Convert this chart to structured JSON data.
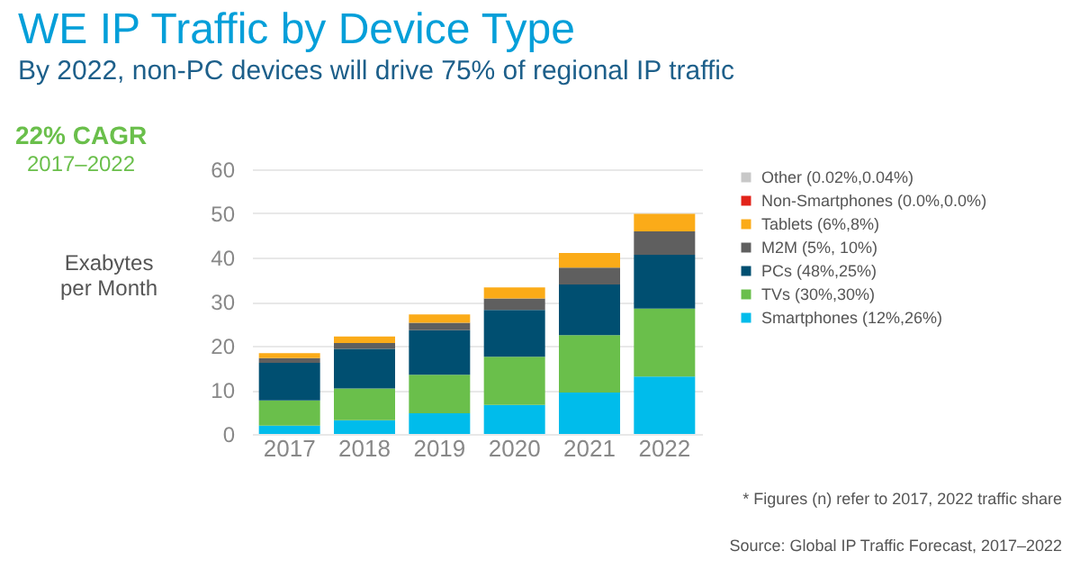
{
  "chart_data": {
    "type": "bar",
    "title": "WE IP Traffic by Device Type",
    "subtitle": "By 2022, non-PC devices will drive 75% of regional IP traffic",
    "ylabel": "Exabytes per Month",
    "categories": [
      "2017",
      "2018",
      "2019",
      "2020",
      "2021",
      "2022"
    ],
    "stacked": true,
    "ylim": [
      0,
      60
    ],
    "yticks": [
      0,
      10,
      20,
      30,
      40,
      50,
      60
    ],
    "grid": "y",
    "legend": "right",
    "series": [
      {
        "name": "Smartphones (12%,26%)",
        "color": "#00bceb",
        "values": [
          1.9,
          3.1,
          4.7,
          6.6,
          9.4,
          13.0
        ]
      },
      {
        "name": "TVs (30%,30%)",
        "color": "#6abf4b",
        "values": [
          5.7,
          7.2,
          8.7,
          10.9,
          13.0,
          15.4
        ]
      },
      {
        "name": "PCs (48%,25%)",
        "color": "#004f71",
        "values": [
          8.5,
          9.0,
          10.1,
          10.6,
          11.5,
          12.2
        ]
      },
      {
        "name": "M2M (5%, 10%)",
        "color": "#5f5f5f",
        "values": [
          1.1,
          1.3,
          1.7,
          2.6,
          3.8,
          5.3
        ]
      },
      {
        "name": "Tablets (6%,8%)",
        "color": "#fbab18",
        "values": [
          1.1,
          1.5,
          1.9,
          2.5,
          3.3,
          4.0
        ]
      },
      {
        "name": "Non-Smartphones (0.0%,0.0%)",
        "color": "#e2231a",
        "values": [
          null,
          null,
          null,
          null,
          null,
          null
        ]
      },
      {
        "name": "Other (0.02%,0.04%)",
        "color": "#c8c8c8",
        "values": [
          null,
          null,
          null,
          null,
          null,
          null
        ]
      }
    ],
    "annotations": [
      "22% CAGR",
      "2017–2022",
      "* Figures (n) refer to 2017, 2022 traffic share",
      "Source: Global IP Traffic Forecast, 2017–2022"
    ]
  }
}
